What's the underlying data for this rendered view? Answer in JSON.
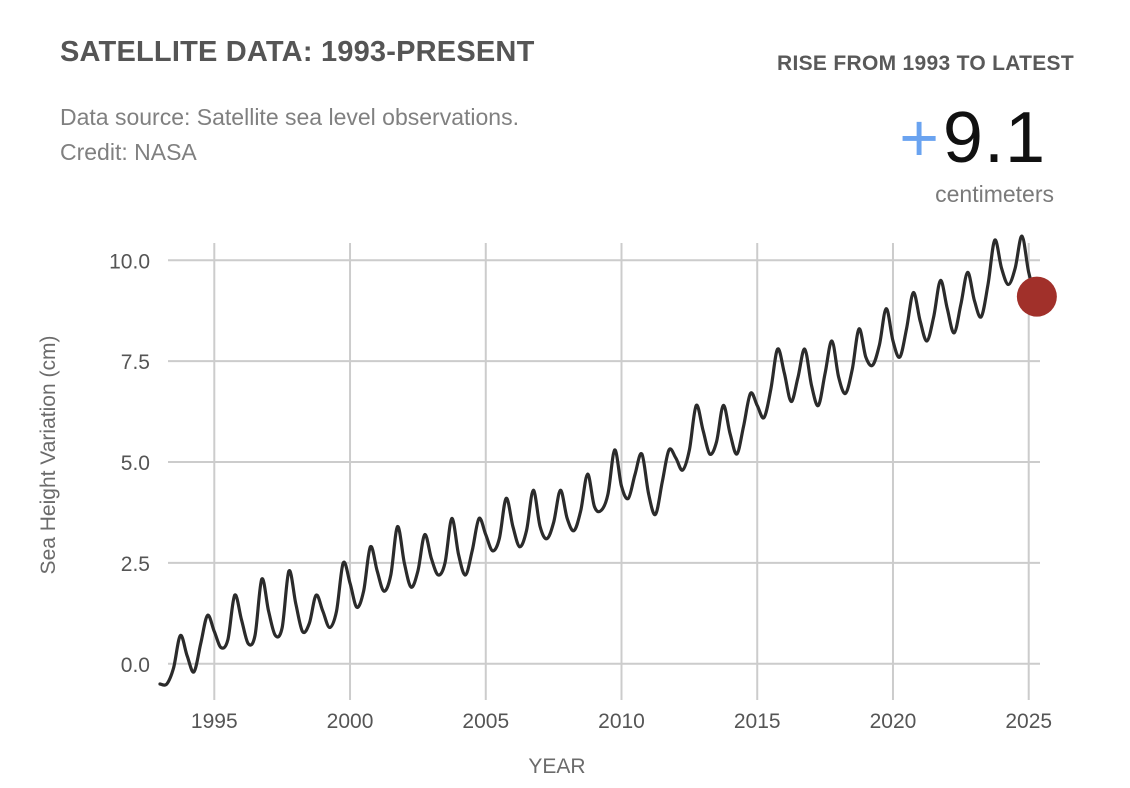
{
  "header": {
    "title": "SATELLITE DATA: 1993-PRESENT",
    "source_line": "Data source: Satellite sea level observations.",
    "credit_line": "Credit: NASA"
  },
  "rise": {
    "label": "RISE FROM 1993 TO LATEST",
    "sign": "+",
    "value": "9.1",
    "unit": "centimeters"
  },
  "colors": {
    "plus": "#6aa3f0",
    "line": "#2b2b2b",
    "latest_marker": "#a1302a",
    "grid": "#cccccc"
  },
  "chart_data": {
    "type": "line",
    "title": "SATELLITE DATA: 1993-PRESENT",
    "xlabel": "YEAR",
    "ylabel": "Sea Height Variation (cm)",
    "xlim": [
      1993,
      2025.6
    ],
    "ylim": [
      -0.6,
      10.8
    ],
    "x_ticks": [
      1995,
      2000,
      2005,
      2010,
      2015,
      2020,
      2025
    ],
    "y_ticks": [
      0.0,
      2.5,
      5.0,
      7.5,
      10.0
    ],
    "y_tick_labels": [
      "0.0",
      "2.5",
      "5.0",
      "7.5",
      "10.0"
    ],
    "grid": true,
    "series": [
      {
        "name": "Sea Height Variation",
        "x": [
          1993.0,
          1993.25,
          1993.5,
          1993.75,
          1994.0,
          1994.25,
          1994.5,
          1994.75,
          1995.0,
          1995.25,
          1995.5,
          1995.75,
          1996.0,
          1996.25,
          1996.5,
          1996.75,
          1997.0,
          1997.25,
          1997.5,
          1997.75,
          1998.0,
          1998.25,
          1998.5,
          1998.75,
          1999.0,
          1999.25,
          1999.5,
          1999.75,
          2000.0,
          2000.25,
          2000.5,
          2000.75,
          2001.0,
          2001.25,
          2001.5,
          2001.75,
          2002.0,
          2002.25,
          2002.5,
          2002.75,
          2003.0,
          2003.25,
          2003.5,
          2003.75,
          2004.0,
          2004.25,
          2004.5,
          2004.75,
          2005.0,
          2005.25,
          2005.5,
          2005.75,
          2006.0,
          2006.25,
          2006.5,
          2006.75,
          2007.0,
          2007.25,
          2007.5,
          2007.75,
          2008.0,
          2008.25,
          2008.5,
          2008.75,
          2009.0,
          2009.25,
          2009.5,
          2009.75,
          2010.0,
          2010.25,
          2010.5,
          2010.75,
          2011.0,
          2011.25,
          2011.5,
          2011.75,
          2012.0,
          2012.25,
          2012.5,
          2012.75,
          2013.0,
          2013.25,
          2013.5,
          2013.75,
          2014.0,
          2014.25,
          2014.5,
          2014.75,
          2015.0,
          2015.25,
          2015.5,
          2015.75,
          2016.0,
          2016.25,
          2016.5,
          2016.75,
          2017.0,
          2017.25,
          2017.5,
          2017.75,
          2018.0,
          2018.25,
          2018.5,
          2018.75,
          2019.0,
          2019.25,
          2019.5,
          2019.75,
          2020.0,
          2020.25,
          2020.5,
          2020.75,
          2021.0,
          2021.25,
          2021.5,
          2021.75,
          2022.0,
          2022.25,
          2022.5,
          2022.75,
          2023.0,
          2023.25,
          2023.5,
          2023.75,
          2024.0,
          2024.25,
          2024.5,
          2024.75,
          2025.0,
          2025.25
        ],
        "values": [
          -0.5,
          -0.5,
          -0.1,
          0.7,
          0.2,
          -0.2,
          0.5,
          1.2,
          0.8,
          0.4,
          0.6,
          1.7,
          1.1,
          0.5,
          0.7,
          2.1,
          1.3,
          0.7,
          0.9,
          2.3,
          1.5,
          0.8,
          1.0,
          1.7,
          1.3,
          0.9,
          1.3,
          2.5,
          2.0,
          1.4,
          1.8,
          2.9,
          2.3,
          1.8,
          2.2,
          3.4,
          2.5,
          1.9,
          2.3,
          3.2,
          2.6,
          2.2,
          2.5,
          3.6,
          2.7,
          2.2,
          2.8,
          3.6,
          3.2,
          2.8,
          3.1,
          4.1,
          3.4,
          2.9,
          3.3,
          4.3,
          3.4,
          3.1,
          3.5,
          4.3,
          3.6,
          3.3,
          3.8,
          4.7,
          3.9,
          3.8,
          4.2,
          5.3,
          4.4,
          4.1,
          4.7,
          5.2,
          4.2,
          3.7,
          4.5,
          5.3,
          5.1,
          4.8,
          5.3,
          6.4,
          5.8,
          5.2,
          5.5,
          6.4,
          5.7,
          5.2,
          5.9,
          6.7,
          6.4,
          6.1,
          6.8,
          7.8,
          7.2,
          6.5,
          7.1,
          7.8,
          6.9,
          6.4,
          7.2,
          8.0,
          7.1,
          6.7,
          7.3,
          8.3,
          7.6,
          7.4,
          7.9,
          8.8,
          8.0,
          7.6,
          8.3,
          9.2,
          8.5,
          8.0,
          8.6,
          9.5,
          8.8,
          8.2,
          8.9,
          9.7,
          9.0,
          8.6,
          9.4,
          10.5,
          9.8,
          9.4,
          9.8,
          10.6,
          9.7,
          9.1
        ],
        "latest": {
          "x": 2025.3,
          "y": 9.1
        }
      }
    ]
  }
}
